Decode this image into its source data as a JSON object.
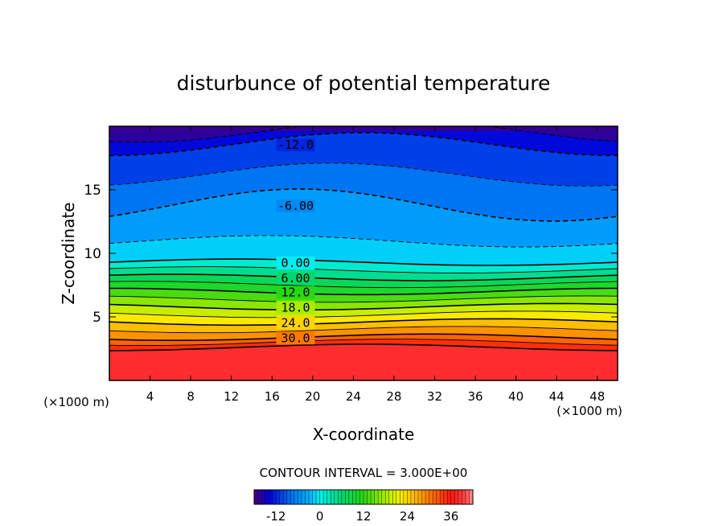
{
  "chart_data": {
    "type": "heatmap",
    "title": "disturbunce of potential temperature",
    "xlabel": "X-coordinate",
    "ylabel": "Z-coordinate",
    "x_unit_left": "(×1000 m)",
    "x_unit_right": "(×1000 m)",
    "xlim": [
      0,
      50
    ],
    "ylim": [
      0,
      20
    ],
    "x_ticks": [
      4,
      8,
      12,
      16,
      20,
      24,
      28,
      32,
      36,
      40,
      44,
      48
    ],
    "y_ticks": [
      5,
      10,
      15
    ],
    "contour_interval_text": "CONTOUR INTERVAL = 3.000E+00",
    "contour_interval": 3.0,
    "contour_labels": [
      {
        "text": "-12.0",
        "x": 18,
        "z": 18.6,
        "value": -12
      },
      {
        "text": "-6.00",
        "x": 18,
        "z": 13.8,
        "value": -6
      },
      {
        "text": "0.00",
        "x": 18,
        "z": 9.3,
        "value": 0
      },
      {
        "text": "6.00",
        "x": 18,
        "z": 8.1,
        "value": 6
      },
      {
        "text": "12.0",
        "x": 18,
        "z": 7.0,
        "value": 12
      },
      {
        "text": "18.0",
        "x": 18,
        "z": 5.8,
        "value": 18
      },
      {
        "text": "24.0",
        "x": 18,
        "z": 4.6,
        "value": 24
      },
      {
        "text": "30.0",
        "x": 18,
        "z": 3.4,
        "value": 30
      }
    ],
    "profile": [
      {
        "z": 0.0,
        "value": 39
      },
      {
        "z": 2.6,
        "value": 36
      },
      {
        "z": 3.4,
        "value": 30
      },
      {
        "z": 4.6,
        "value": 24
      },
      {
        "z": 5.8,
        "value": 18
      },
      {
        "z": 7.0,
        "value": 12
      },
      {
        "z": 8.1,
        "value": 6
      },
      {
        "z": 9.3,
        "value": 0
      },
      {
        "z": 11.5,
        "value": -4
      },
      {
        "z": 13.8,
        "value": -6
      },
      {
        "z": 17.0,
        "value": -10
      },
      {
        "z": 18.6,
        "value": -12
      },
      {
        "z": 20.0,
        "value": -16
      }
    ],
    "colorbar": {
      "range": [
        -18,
        42
      ],
      "ticks": [
        "-12",
        "0",
        "12",
        "24",
        "36"
      ]
    }
  }
}
